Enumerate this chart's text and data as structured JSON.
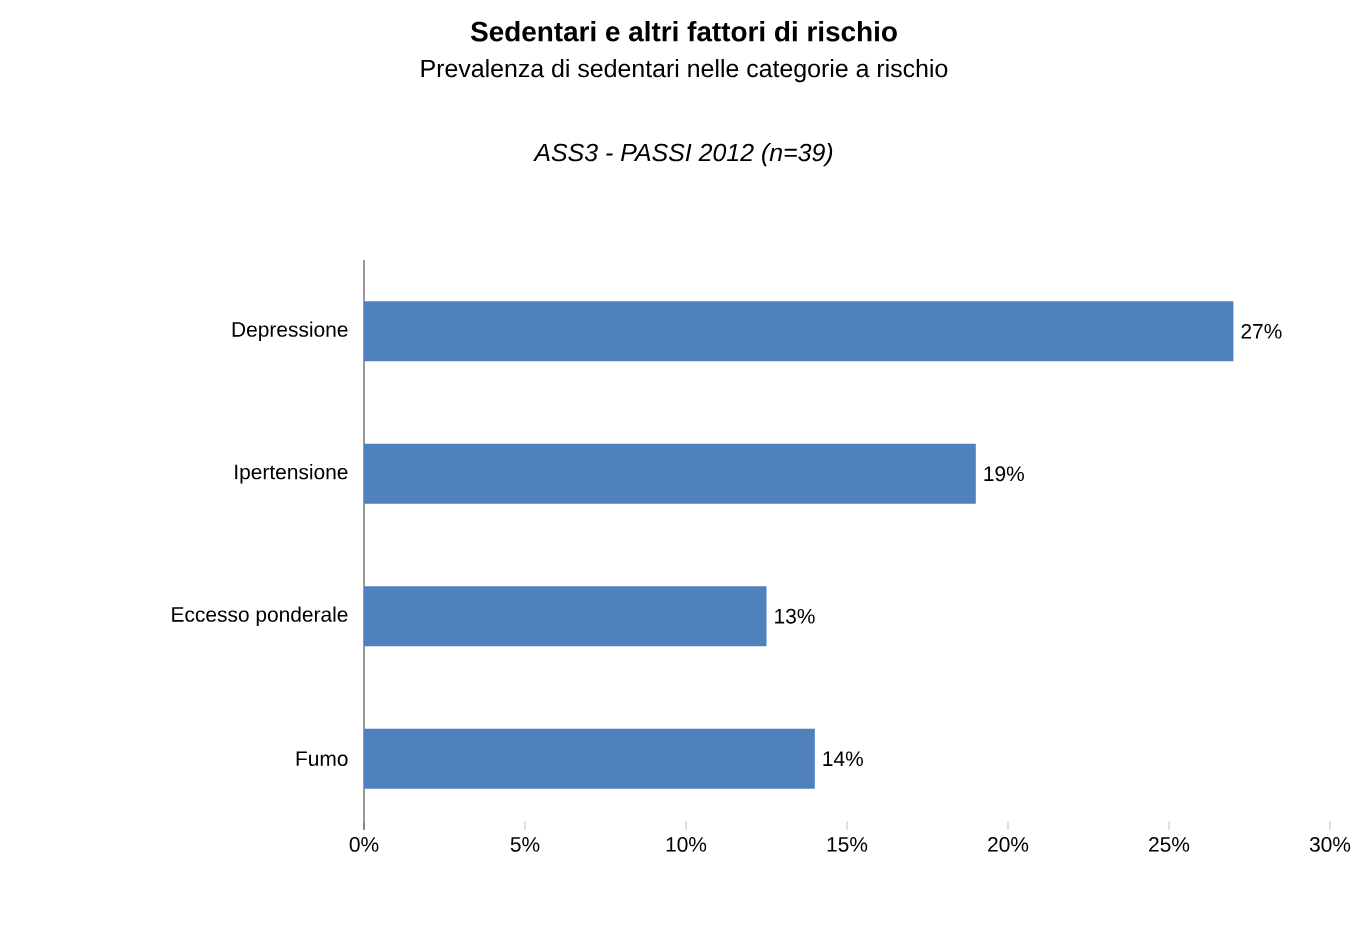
{
  "chart_data": {
    "type": "bar",
    "orientation": "horizontal",
    "title": "Sedentari e altri fattori di rischio",
    "subtitle": "Prevalenza di sedentari nelle categorie a rischio",
    "annotations": [
      "*ASS3 - PASSI 2012 (n=39)*"
    ],
    "categories": [
      "Depressione",
      "Ipertensione",
      "Eccesso ponderale",
      "Fumo"
    ],
    "values": [
      27,
      19,
      12.5,
      14
    ],
    "value_labels": [
      "27%",
      "19%",
      "13%",
      "14%"
    ],
    "color": "#4f81bd",
    "xlim": [
      0,
      30
    ],
    "xticks": [
      {
        "value": 0,
        "label": "0%"
      },
      {
        "value": 5,
        "label": "5%"
      },
      {
        "value": 10,
        "label": "10%"
      },
      {
        "value": 15,
        "label": "15%"
      },
      {
        "value": 20,
        "label": "20%"
      },
      {
        "value": 25,
        "label": "25%"
      },
      {
        "value": 30,
        "label": "30%"
      }
    ]
  }
}
